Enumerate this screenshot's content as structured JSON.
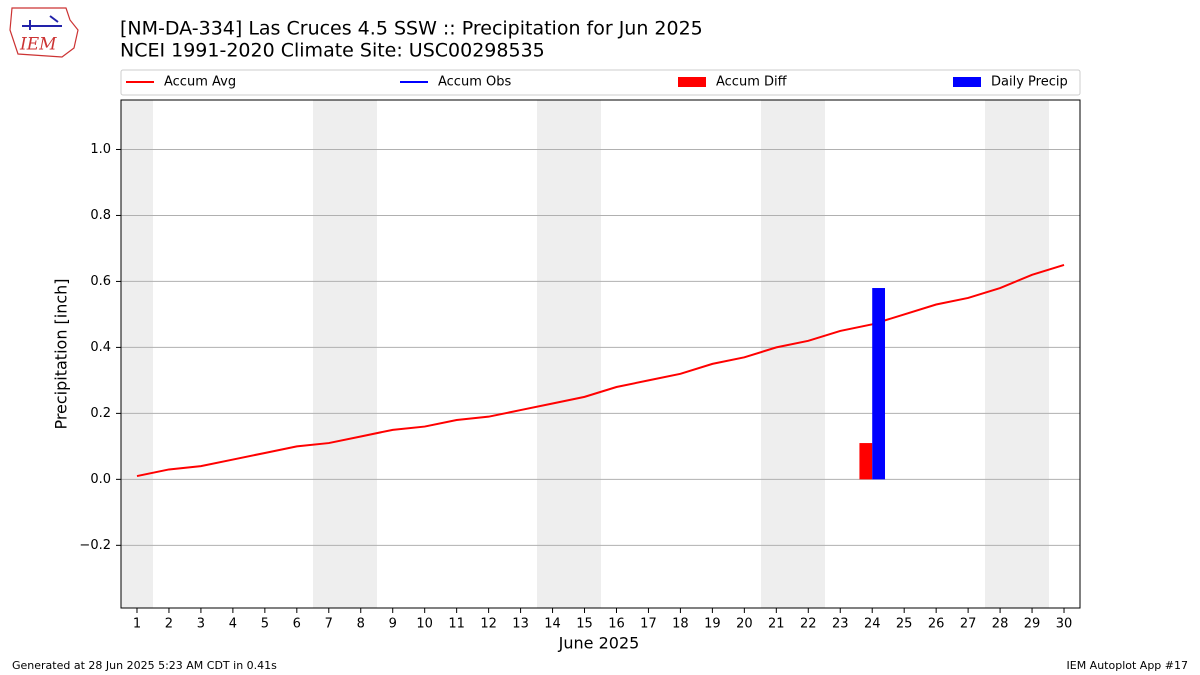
{
  "logo_text": "IEM",
  "footer_left": "Generated at 28 Jun 2025 5:23 AM CDT in 0.41s",
  "footer_right": "IEM Autoplot App #17",
  "chart_data": {
    "type": "line",
    "title": "[NM-DA-334] Las Cruces 4.5 SSW :: Precipitation for Jun 2025",
    "subtitle": "NCEI 1991-2020 Climate Site: USC00298535",
    "xlabel": "June 2025",
    "ylabel": "Precipitation [inch]",
    "x": [
      1,
      2,
      3,
      4,
      5,
      6,
      7,
      8,
      9,
      10,
      11,
      12,
      13,
      14,
      15,
      16,
      17,
      18,
      19,
      20,
      21,
      22,
      23,
      24,
      25,
      26,
      27,
      28,
      29,
      30
    ],
    "xlim": [
      0.5,
      30.5
    ],
    "xticks": [
      1,
      2,
      3,
      4,
      5,
      6,
      7,
      8,
      9,
      10,
      11,
      12,
      13,
      14,
      15,
      16,
      17,
      18,
      19,
      20,
      21,
      22,
      23,
      24,
      25,
      26,
      27,
      28,
      29,
      30
    ],
    "ylim": [
      -0.39,
      1.15
    ],
    "yticks": [
      {
        "value": -0.2,
        "label": "−0.2"
      },
      {
        "value": 0,
        "label": "0.0"
      },
      0.2,
      0.4,
      0.6,
      0.8,
      {
        "value": 1.0,
        "label": "1.0"
      }
    ],
    "grid": true,
    "series": [
      {
        "name": "Accum Avg",
        "kind": "line",
        "color": "#ff0000",
        "values": [
          0.01,
          0.03,
          0.04,
          0.06,
          0.08,
          0.1,
          0.11,
          0.13,
          0.15,
          0.16,
          0.18,
          0.19,
          0.21,
          0.23,
          0.25,
          0.28,
          0.3,
          0.32,
          0.35,
          0.37,
          0.4,
          0.42,
          0.45,
          0.47,
          0.5,
          0.53,
          0.55,
          0.58,
          0.62,
          0.65
        ]
      },
      {
        "name": "Accum Obs",
        "kind": "line",
        "color": "#0000ff",
        "values": [
          null,
          null,
          null,
          null,
          null,
          null,
          null,
          null,
          null,
          null,
          null,
          null,
          null,
          null,
          null,
          null,
          null,
          null,
          null,
          null,
          null,
          null,
          null,
          null,
          null,
          null,
          null,
          null,
          null,
          null
        ]
      },
      {
        "name": "Accum Diff",
        "kind": "bar",
        "color": "#ff0000",
        "values": [
          null,
          null,
          null,
          null,
          null,
          null,
          null,
          null,
          null,
          null,
          null,
          null,
          null,
          null,
          null,
          null,
          null,
          null,
          null,
          null,
          null,
          null,
          null,
          0.11,
          null,
          null,
          null,
          null,
          null,
          null
        ]
      },
      {
        "name": "Daily Precip",
        "kind": "bar",
        "color": "#0000ff",
        "values": [
          null,
          null,
          null,
          null,
          null,
          null,
          null,
          null,
          null,
          null,
          null,
          null,
          null,
          null,
          null,
          null,
          null,
          null,
          null,
          null,
          null,
          null,
          null,
          0.58,
          null,
          null,
          null,
          null,
          null,
          null
        ]
      }
    ]
  }
}
